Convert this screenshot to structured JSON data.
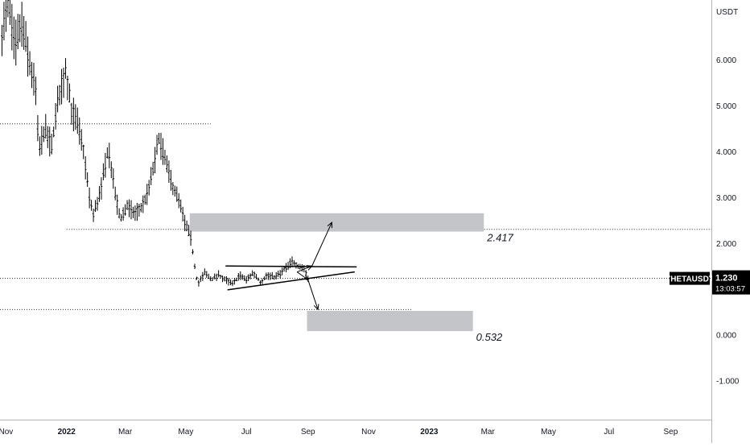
{
  "chart_data": {
    "type": "candlestick",
    "symbol": "THETAUSDT",
    "currency_label": "USDT",
    "y_ticks": [
      6,
      5,
      4,
      3,
      2,
      1,
      0,
      -1
    ],
    "y_tick_labels": [
      "6.000",
      "5.000",
      "4.000",
      "3.000",
      "2.000",
      "1.000",
      "0.000",
      "-1.000"
    ],
    "ylim": [
      -1.85,
      7.3
    ],
    "x_ticks": [
      "2021-11-01",
      "2022-01-01",
      "2022-03-01",
      "2022-05-01",
      "2022-07-01",
      "2022-09-01",
      "2022-11-01",
      "2023-01-01",
      "2023-03-01",
      "2023-05-01",
      "2023-07-01",
      "2023-09-01"
    ],
    "x_tick_labels": [
      "Nov",
      "2022",
      "Mar",
      "May",
      "Jul",
      "Sep",
      "Nov",
      "2023",
      "Mar",
      "May",
      "Jul",
      "Sep"
    ],
    "xlim": [
      "2021-10-26",
      "2023-10-12"
    ],
    "last_price": "1.230",
    "countdown": "13:03:57",
    "price_series": [
      [
        "2021-10-28",
        6.6
      ],
      [
        "2021-11-03",
        7.2
      ],
      [
        "2021-11-10",
        6.3
      ],
      [
        "2021-11-17",
        6.8
      ],
      [
        "2021-11-24",
        6.0
      ],
      [
        "2021-12-01",
        5.3
      ],
      [
        "2021-12-04",
        4.0
      ],
      [
        "2021-12-10",
        4.5
      ],
      [
        "2021-12-17",
        4.1
      ],
      [
        "2021-12-24",
        5.2
      ],
      [
        "2021-12-31",
        5.8
      ],
      [
        "2022-01-06",
        4.9
      ],
      [
        "2022-01-12",
        4.6
      ],
      [
        "2022-01-18",
        4.0
      ],
      [
        "2022-01-24",
        3.0
      ],
      [
        "2022-01-28",
        2.6
      ],
      [
        "2022-02-05",
        3.2
      ],
      [
        "2022-02-12",
        4.1
      ],
      [
        "2022-02-18",
        3.2
      ],
      [
        "2022-02-24",
        2.5
      ],
      [
        "2022-03-03",
        2.8
      ],
      [
        "2022-03-10",
        2.65
      ],
      [
        "2022-03-17",
        2.75
      ],
      [
        "2022-03-24",
        3.1
      ],
      [
        "2022-03-31",
        3.8
      ],
      [
        "2022-04-04",
        4.3
      ],
      [
        "2022-04-10",
        3.8
      ],
      [
        "2022-04-17",
        3.3
      ],
      [
        "2022-04-24",
        2.9
      ],
      [
        "2022-04-30",
        2.45
      ],
      [
        "2022-05-06",
        2.1
      ],
      [
        "2022-05-10",
        1.5
      ],
      [
        "2022-05-13",
        1.1
      ],
      [
        "2022-05-20",
        1.35
      ],
      [
        "2022-05-27",
        1.2
      ],
      [
        "2022-06-03",
        1.3
      ],
      [
        "2022-06-10",
        1.2
      ],
      [
        "2022-06-17",
        1.1
      ],
      [
        "2022-06-24",
        1.3
      ],
      [
        "2022-07-01",
        1.2
      ],
      [
        "2022-07-08",
        1.35
      ],
      [
        "2022-07-15",
        1.15
      ],
      [
        "2022-07-22",
        1.3
      ],
      [
        "2022-07-29",
        1.25
      ],
      [
        "2022-08-05",
        1.35
      ],
      [
        "2022-08-12",
        1.5
      ],
      [
        "2022-08-16",
        1.6
      ],
      [
        "2022-08-22",
        1.5
      ],
      [
        "2022-08-28",
        1.45
      ],
      [
        "2022-09-01",
        1.23
      ]
    ],
    "horizontal_lines": [
      {
        "price": 4.6,
        "from": "2021-10-26",
        "to": "2022-05-26"
      },
      {
        "price": 2.3,
        "from": "2022-01-01",
        "to": "2023-10-12"
      },
      {
        "price": 1.23,
        "from": "2021-10-26",
        "to": "2023-10-12"
      },
      {
        "price": 0.55,
        "from": "2021-10-26",
        "to": "2022-12-15"
      }
    ],
    "target_zones": [
      {
        "label": "2.417",
        "from": "2022-05-05",
        "to": "2023-02-25",
        "price_top": 2.65,
        "price_bottom": 2.25
      },
      {
        "label": "0.532",
        "from": "2022-08-31",
        "to": "2023-02-14",
        "price_top": 0.52,
        "price_bottom": 0.08
      }
    ],
    "pattern_lines": [
      {
        "from": [
          "2022-06-10",
          1.5
        ],
        "to": [
          "2022-10-20",
          1.48
        ]
      },
      {
        "from": [
          "2022-06-12",
          0.98
        ],
        "to": [
          "2022-10-18",
          1.37
        ]
      }
    ],
    "projections": [
      {
        "from": [
          "2022-08-21",
          1.37
        ],
        "to": [
          "2022-09-05",
          1.5
        ],
        "direction": "up"
      },
      {
        "from": [
          "2022-09-05",
          1.5
        ],
        "to": [
          "2022-09-25",
          2.45
        ],
        "direction": "up"
      },
      {
        "from": [
          "2022-08-21",
          1.37
        ],
        "to": [
          "2022-09-01",
          1.2
        ],
        "direction": "down"
      },
      {
        "from": [
          "2022-09-01",
          1.2
        ],
        "to": [
          "2022-09-11",
          0.55
        ],
        "direction": "down"
      }
    ]
  }
}
